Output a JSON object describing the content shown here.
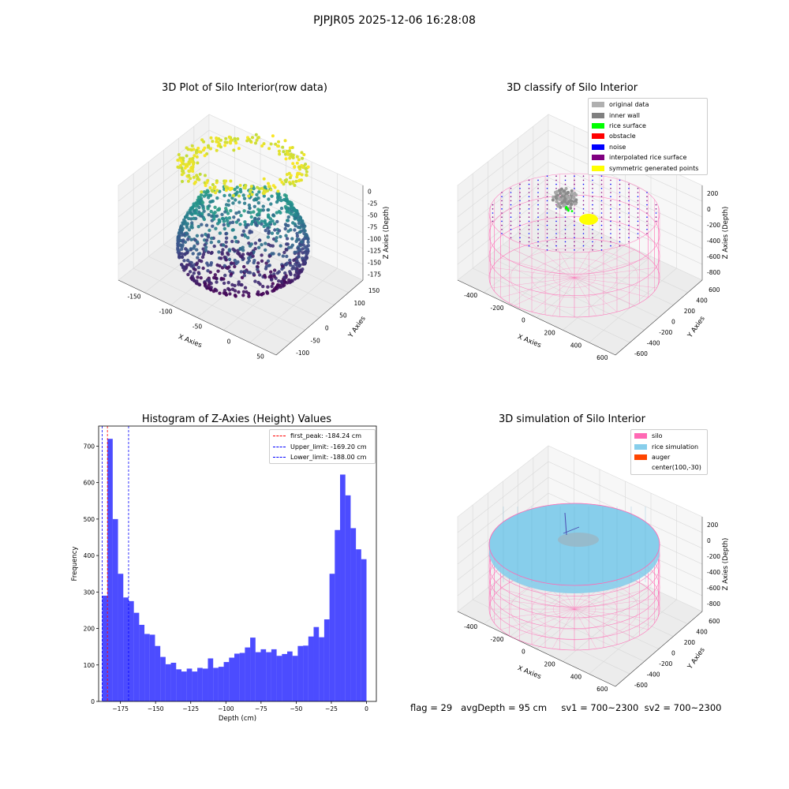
{
  "suptitle": "PJPJR05 2025-12-06 16:28:08",
  "footer": "flag = 29   avgDepth = 95 cm     sv1 = 700~2300  sv2 = 700~2300",
  "plot_raw": {
    "title": "3D Plot of Silo Interior(row data)",
    "xlabel": "X Axies",
    "ylabel": "Y Axies",
    "zlabel": "Z Axies (Depth)",
    "xticks": [
      "-150",
      "-100",
      "-50",
      "0",
      "50"
    ],
    "yticks": [
      "-100",
      "-50",
      "0",
      "50",
      "100",
      "150"
    ],
    "zticks": [
      "0",
      "-25",
      "-50",
      "-75",
      "-100",
      "-125",
      "-150",
      "-175"
    ]
  },
  "plot_classify": {
    "title": "3D classify of Silo Interior",
    "xlabel": "X Axies",
    "ylabel": "Y Axies",
    "zlabel": "Z Axies (Depth)",
    "xticks": [
      "-400",
      "-200",
      "0",
      "200",
      "400",
      "600"
    ],
    "yticks": [
      "-600",
      "-400",
      "-200",
      "0",
      "200",
      "400",
      "600"
    ],
    "zticks": [
      "200",
      "0",
      "-200",
      "-400",
      "-600",
      "-800"
    ],
    "legend": [
      {
        "label": "original data",
        "color": "#b0b0b0"
      },
      {
        "label": "inner wall",
        "color": "#808080"
      },
      {
        "label": "rice surface",
        "color": "#00ff00"
      },
      {
        "label": "obstacle",
        "color": "#ff0000"
      },
      {
        "label": "noise",
        "color": "#0000ff"
      },
      {
        "label": "interpolated rice surface",
        "color": "#800080"
      },
      {
        "label": "symmetric generated points",
        "color": "#ffff00"
      }
    ]
  },
  "plot_sim": {
    "title": "3D simulation of Silo Interior",
    "xlabel": "X Axies",
    "ylabel": "Y Axies",
    "zlabel": "Z Axies (Depth)",
    "xticks": [
      "-400",
      "-200",
      "0",
      "200",
      "400",
      "600"
    ],
    "yticks": [
      "-600",
      "-400",
      "-200",
      "0",
      "200",
      "400",
      "600"
    ],
    "zticks": [
      "200",
      "0",
      "-200",
      "-400",
      "-600",
      "-800"
    ],
    "legend": [
      {
        "label": "silo",
        "color": "#ff69b4"
      },
      {
        "label": "rice simulation",
        "color": "#87ceeb"
      },
      {
        "label": "auger",
        "color": "#ff4500"
      },
      {
        "label": "center(100,-30)",
        "color": "#ffffff"
      }
    ]
  },
  "chart_data": {
    "type": "bar",
    "title": "Histogram of Z-Axies (Height) Values",
    "xlabel": "Depth (cm)",
    "ylabel": "Frequency",
    "xlim": [
      -190.5,
      7
    ],
    "ylim": [
      0,
      755
    ],
    "xticks": [
      -175,
      -150,
      -125,
      -100,
      -75,
      -50,
      -25,
      0
    ],
    "yticks": [
      0,
      100,
      200,
      300,
      400,
      500,
      600,
      700
    ],
    "bin_range": [
      -188,
      0
    ],
    "values": [
      290,
      720,
      500,
      350,
      285,
      275,
      243,
      210,
      185,
      183,
      152,
      122,
      102,
      106,
      88,
      82,
      90,
      82,
      92,
      90,
      118,
      92,
      95,
      108,
      120,
      131,
      133,
      148,
      175,
      135,
      143,
      135,
      143,
      125,
      130,
      137,
      125,
      152,
      153,
      178,
      204,
      176,
      225,
      350,
      470,
      622,
      565,
      475,
      417,
      390
    ],
    "bar_color": "#0000ff",
    "vlines": [
      {
        "label": "first_peak: -184.24 cm",
        "x": -184.24,
        "color": "#ff0000"
      },
      {
        "label": "Upper_limit: -169.20 cm",
        "x": -169.2,
        "color": "#0000ff"
      },
      {
        "label": "Lower_limit: -188.00 cm",
        "x": -188.0,
        "color": "#0000ff"
      }
    ]
  }
}
